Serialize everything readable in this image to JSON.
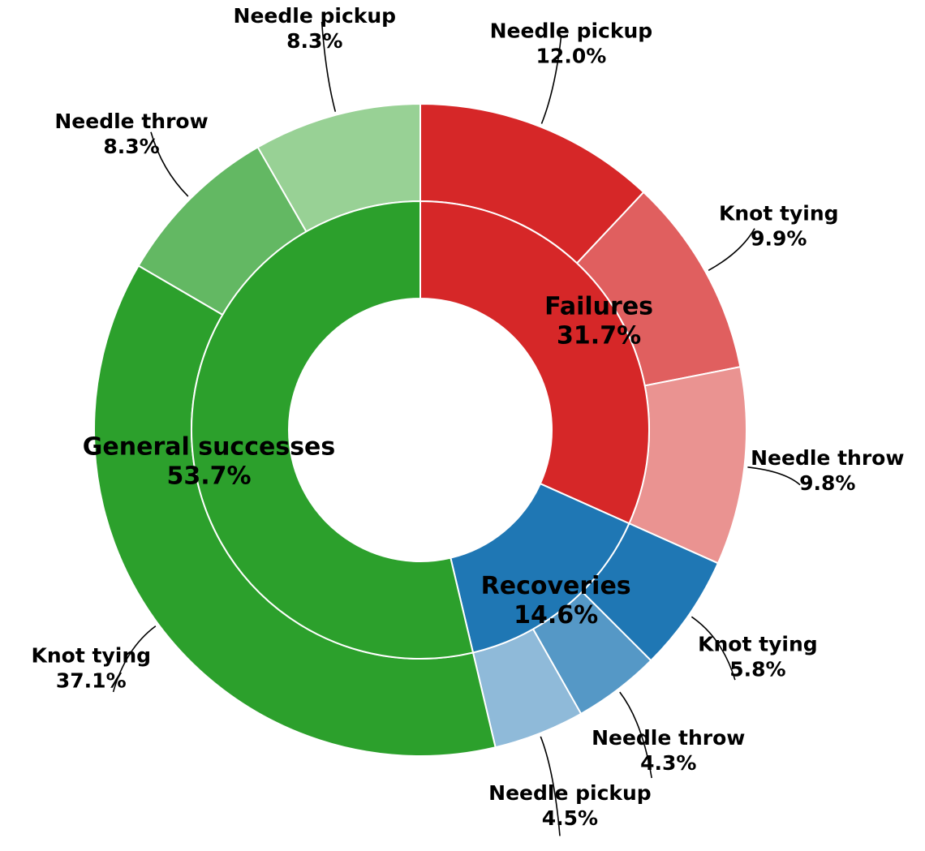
{
  "chart_data": {
    "type": "pie",
    "subtype": "nested-donut",
    "title": "",
    "start": "top, clockwise",
    "inner_ring": [
      {
        "name": "Failures",
        "percent": 31.7,
        "color": "#d62728"
      },
      {
        "name": "Recoveries",
        "percent": 14.6,
        "color": "#1f77b4"
      },
      {
        "name": "General successes",
        "percent": 53.7,
        "color": "#2ca02c"
      }
    ],
    "outer_ring": [
      {
        "group": "Failures",
        "name": "Needle pickup",
        "percent": 12.0,
        "color": "#d62728"
      },
      {
        "group": "Failures",
        "name": "Knot tying",
        "percent": 9.9,
        "color": "#e05f5f"
      },
      {
        "group": "Failures",
        "name": "Needle throw",
        "percent": 9.8,
        "color": "#ea9391"
      },
      {
        "group": "Recoveries",
        "name": "Knot tying",
        "percent": 5.8,
        "color": "#1f77b4"
      },
      {
        "group": "Recoveries",
        "name": "Needle throw",
        "percent": 4.3,
        "color": "#5598c6"
      },
      {
        "group": "Recoveries",
        "name": "Needle pickup",
        "percent": 4.5,
        "color": "#8fbad9"
      },
      {
        "group": "General successes",
        "name": "Knot tying",
        "percent": 37.1,
        "color": "#2ca02c"
      },
      {
        "group": "General successes",
        "name": "Needle throw",
        "percent": 8.3,
        "color": "#63b863"
      },
      {
        "group": "General successes",
        "name": "Needle pickup",
        "percent": 8.3,
        "color": "#98d195"
      }
    ],
    "inner_labels": [
      "Failures\n31.7%",
      "Recoveries\n14.6%",
      "General successes\n53.7%"
    ],
    "outer_labels": [
      "Needle pickup\n12.0%",
      "Knot tying\n9.9%",
      "Needle throw\n9.8%",
      "Knot tying\n5.8%",
      "Needle throw\n4.3%",
      "Needle pickup\n4.5%",
      "Knot tying\n37.1%",
      "Needle throw\n8.3%",
      "Needle pickup\n8.3%"
    ]
  }
}
